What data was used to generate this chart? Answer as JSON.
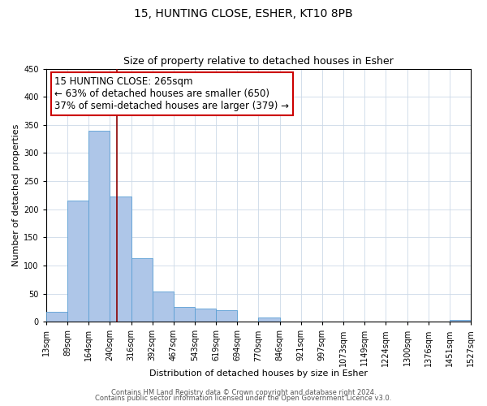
{
  "title": "15, HUNTING CLOSE, ESHER, KT10 8PB",
  "subtitle": "Size of property relative to detached houses in Esher",
  "xlabel": "Distribution of detached houses by size in Esher",
  "ylabel": "Number of detached properties",
  "bin_edges": [
    13,
    89,
    164,
    240,
    316,
    392,
    467,
    543,
    619,
    694,
    770,
    846,
    921,
    997,
    1073,
    1149,
    1224,
    1300,
    1376,
    1451,
    1527
  ],
  "bin_labels": [
    "13sqm",
    "89sqm",
    "164sqm",
    "240sqm",
    "316sqm",
    "392sqm",
    "467sqm",
    "543sqm",
    "619sqm",
    "694sqm",
    "770sqm",
    "846sqm",
    "921sqm",
    "997sqm",
    "1073sqm",
    "1149sqm",
    "1224sqm",
    "1300sqm",
    "1376sqm",
    "1451sqm",
    "1527sqm"
  ],
  "bar_heights": [
    18,
    215,
    340,
    222,
    113,
    53,
    26,
    24,
    20,
    0,
    8,
    0,
    0,
    0,
    0,
    0,
    0,
    0,
    0,
    3,
    3
  ],
  "bar_color": "#aec6e8",
  "bar_edge_color": "#5a9fd4",
  "vline_x": 265,
  "vline_color": "#8b0000",
  "ylim": [
    0,
    450
  ],
  "yticks": [
    0,
    50,
    100,
    150,
    200,
    250,
    300,
    350,
    400,
    450
  ],
  "annotation_line1": "15 HUNTING CLOSE: 265sqm",
  "annotation_line2": "← 63% of detached houses are smaller (650)",
  "annotation_line3": "37% of semi-detached houses are larger (379) →",
  "annotation_box_color": "#ffffff",
  "annotation_box_edge_color": "#cc0000",
  "footer1": "Contains HM Land Registry data © Crown copyright and database right 2024.",
  "footer2": "Contains public sector information licensed under the Open Government Licence v3.0.",
  "background_color": "#ffffff",
  "grid_color": "#ccd9e8",
  "title_fontsize": 10,
  "subtitle_fontsize": 9,
  "axis_label_fontsize": 8,
  "tick_fontsize": 7,
  "footer_fontsize": 6,
  "annotation_fontsize": 8.5
}
